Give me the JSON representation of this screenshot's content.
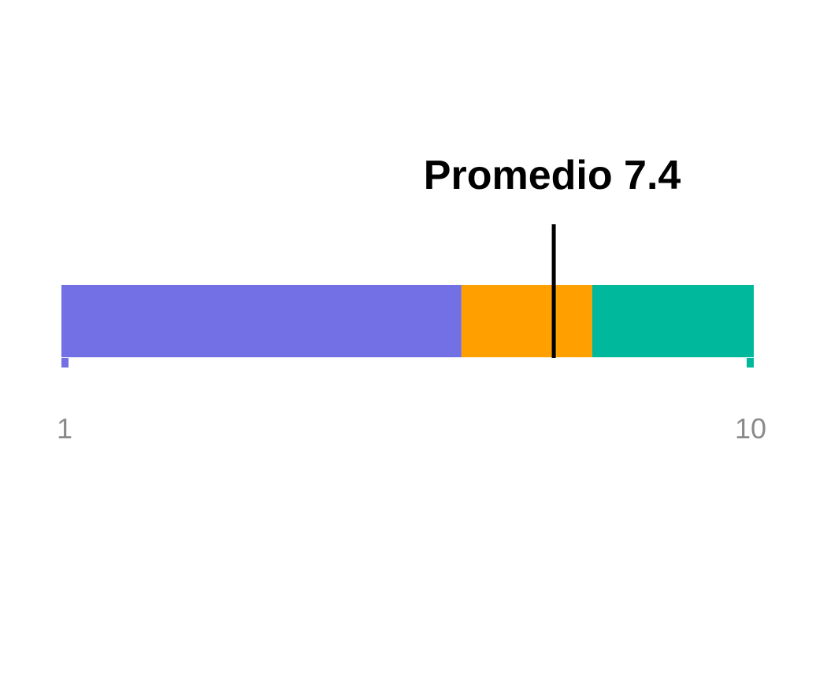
{
  "chart_data": {
    "type": "bar",
    "orientation": "horizontal",
    "stacked": true,
    "xlim": [
      1,
      10
    ],
    "segments": [
      {
        "start": 1,
        "end": 6.2,
        "color": "#7370e5"
      },
      {
        "start": 6.2,
        "end": 7.9,
        "color": "#ffa000"
      },
      {
        "start": 7.9,
        "end": 10,
        "color": "#00b89c"
      }
    ],
    "average": {
      "label": "Promedio 7.4",
      "value": 7.4,
      "color": "#000000"
    },
    "tick_labels": [
      {
        "value": 1,
        "text": "1"
      },
      {
        "value": 10,
        "text": "10"
      }
    ],
    "tick_label_color": "#8a8a8a",
    "grid": false,
    "legend": "none"
  }
}
